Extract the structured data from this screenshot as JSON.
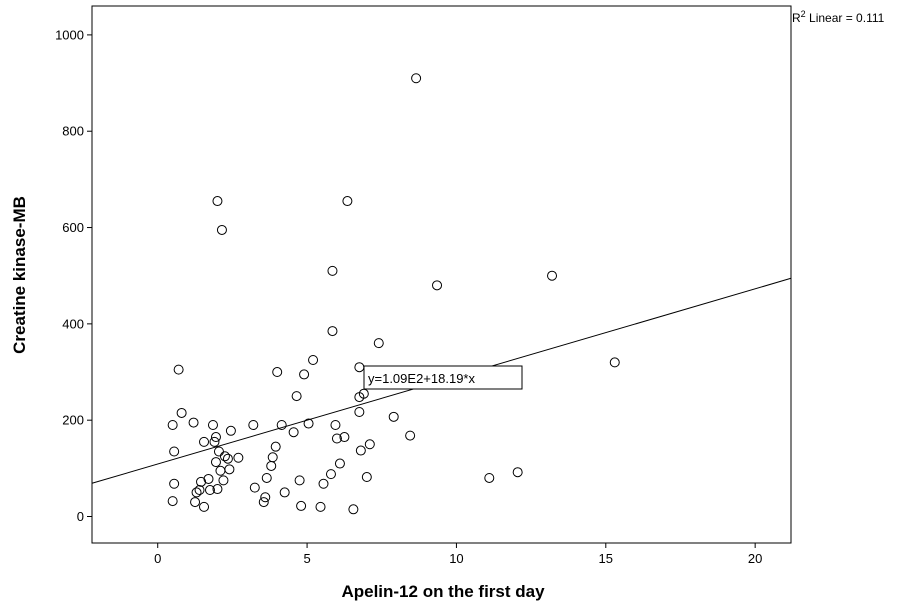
{
  "chart_data": {
    "type": "scatter",
    "xlabel": "Apelin-12 on the first day",
    "ylabel": "Creatine kinase-MB",
    "xlim": [
      -2.2,
      21.2
    ],
    "ylim": [
      -55,
      1060
    ],
    "xticks": [
      0,
      5,
      10,
      15,
      20
    ],
    "yticks": [
      0,
      200,
      400,
      600,
      800,
      1000
    ],
    "xtick_labels": [
      "0",
      "5",
      "10",
      "15",
      "20"
    ],
    "ytick_labels": [
      "0",
      "200",
      "400",
      "600",
      "800",
      "1000"
    ],
    "grid": false,
    "marker": "open-circle",
    "fit_line": {
      "intercept": 109,
      "slope": 18.19
    },
    "fit_label": "y=1.09E2+18.19*x",
    "r2_label_prefix": "R",
    "r2_label_sup": "2",
    "r2_label_rest": " Linear = 0.111",
    "points": [
      [
        0.5,
        32
      ],
      [
        0.55,
        68
      ],
      [
        0.5,
        190
      ],
      [
        0.55,
        135
      ],
      [
        0.7,
        305
      ],
      [
        0.8,
        215
      ],
      [
        1.2,
        195
      ],
      [
        1.25,
        30
      ],
      [
        1.3,
        50
      ],
      [
        1.4,
        55
      ],
      [
        1.45,
        72
      ],
      [
        1.55,
        155
      ],
      [
        1.55,
        20
      ],
      [
        1.7,
        78
      ],
      [
        1.75,
        55
      ],
      [
        1.85,
        190
      ],
      [
        1.9,
        155
      ],
      [
        1.95,
        165
      ],
      [
        1.95,
        113
      ],
      [
        2.0,
        57
      ],
      [
        2.0,
        655
      ],
      [
        2.05,
        135
      ],
      [
        2.1,
        95
      ],
      [
        2.15,
        595
      ],
      [
        2.2,
        75
      ],
      [
        2.25,
        125
      ],
      [
        2.35,
        120
      ],
      [
        2.4,
        98
      ],
      [
        2.45,
        178
      ],
      [
        2.7,
        122
      ],
      [
        3.2,
        190
      ],
      [
        3.25,
        60
      ],
      [
        3.55,
        30
      ],
      [
        3.6,
        40
      ],
      [
        3.65,
        80
      ],
      [
        3.8,
        105
      ],
      [
        3.85,
        123
      ],
      [
        3.95,
        145
      ],
      [
        4.0,
        300
      ],
      [
        4.15,
        190
      ],
      [
        4.25,
        50
      ],
      [
        4.55,
        175
      ],
      [
        4.65,
        250
      ],
      [
        4.75,
        75
      ],
      [
        4.8,
        22
      ],
      [
        4.9,
        295
      ],
      [
        5.05,
        193
      ],
      [
        5.2,
        325
      ],
      [
        5.45,
        20
      ],
      [
        5.55,
        68
      ],
      [
        5.8,
        88
      ],
      [
        5.85,
        510
      ],
      [
        5.85,
        385
      ],
      [
        5.95,
        190
      ],
      [
        6.0,
        162
      ],
      [
        6.1,
        110
      ],
      [
        6.25,
        165
      ],
      [
        6.35,
        655
      ],
      [
        6.55,
        15
      ],
      [
        6.75,
        310
      ],
      [
        6.75,
        248
      ],
      [
        6.75,
        217
      ],
      [
        6.8,
        137
      ],
      [
        6.9,
        255
      ],
      [
        7.0,
        82
      ],
      [
        7.1,
        295
      ],
      [
        7.1,
        150
      ],
      [
        7.4,
        360
      ],
      [
        7.9,
        207
      ],
      [
        8.45,
        168
      ],
      [
        8.65,
        910
      ],
      [
        9.35,
        480
      ],
      [
        11.1,
        80
      ],
      [
        12.05,
        92
      ],
      [
        13.2,
        500
      ],
      [
        15.3,
        320
      ]
    ]
  }
}
